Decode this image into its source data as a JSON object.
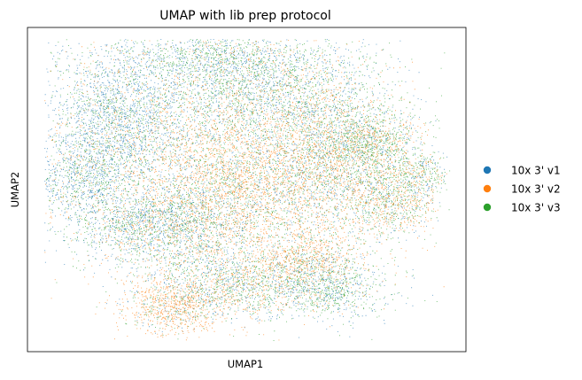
{
  "chart_data": {
    "type": "scatter",
    "title": "UMAP with lib prep protocol",
    "xlabel": "UMAP1",
    "ylabel": "UMAP2",
    "xticks": [],
    "yticks": [],
    "grid": false,
    "legend_position": "outside-right",
    "series": [
      {
        "name": "10x 3' v1",
        "color": "#1f77b4"
      },
      {
        "name": "10x 3' v2",
        "color": "#ff7f0e"
      },
      {
        "name": "10x 3' v3",
        "color": "#2ca02c"
      }
    ]
  }
}
